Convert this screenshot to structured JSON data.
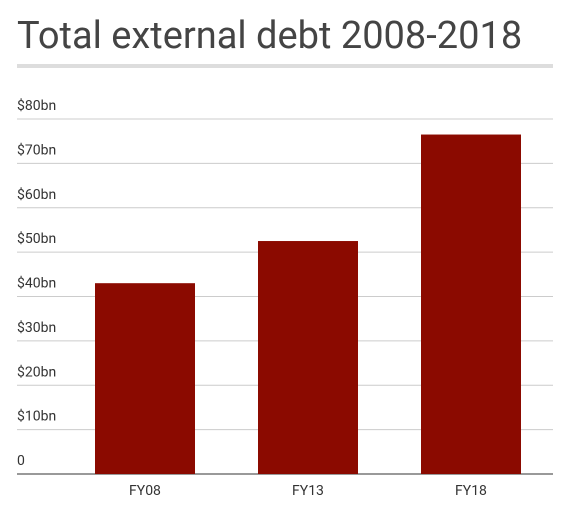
{
  "chart_data": {
    "type": "bar",
    "title": "Total external debt 2008-2018",
    "categories": [
      "FY08",
      "FY13",
      "FY18"
    ],
    "values": [
      43,
      52.5,
      76.5
    ],
    "color": "#8b0a00",
    "ylim": [
      0,
      80
    ],
    "yticks": [
      0,
      {
        "value": 10,
        "label": "$10bn"
      },
      {
        "value": 20,
        "label": "$20bn"
      },
      {
        "value": 30,
        "label": "$30bn"
      },
      {
        "value": 40,
        "label": "$40bn"
      },
      {
        "value": 50,
        "label": "$50bn"
      },
      {
        "value": 60,
        "label": "$60bn"
      },
      {
        "value": 70,
        "label": "$70bn"
      },
      {
        "value": 80,
        "label": "$80bn"
      }
    ],
    "grid": true
  }
}
